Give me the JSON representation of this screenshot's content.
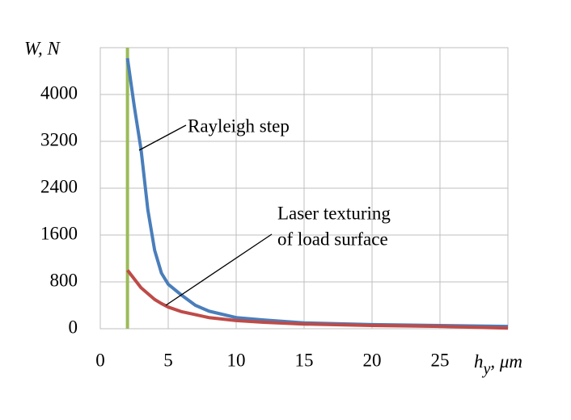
{
  "chart_data": {
    "type": "line",
    "y_label": "W, N",
    "x_label": {
      "symbol": "h",
      "subscript": "y",
      "unit": ", μm"
    },
    "x": [
      2,
      2.5,
      3,
      3.5,
      4,
      4.5,
      5,
      6,
      7,
      8,
      10,
      12,
      15,
      20,
      25,
      30
    ],
    "series": [
      {
        "name": "Rayleigh step",
        "color": "#4a7ebb",
        "values": [
          4620,
          3800,
          3060,
          2030,
          1340,
          950,
          760,
          570,
          400,
          300,
          190,
          150,
          100,
          70,
          55,
          40
        ]
      },
      {
        "name": "Laser texturing of load surface",
        "color": "#be4b48",
        "values": [
          1000,
          850,
          700,
          600,
          500,
          430,
          370,
          290,
          240,
          190,
          140,
          110,
          80,
          55,
          40,
          10
        ]
      }
    ],
    "vertical_line": {
      "x": 2,
      "color": "#9bbb59"
    },
    "annotations": [
      {
        "text": "Rayleigh step"
      },
      {
        "text": "Laser texturing"
      },
      {
        "text": "of load surface"
      }
    ],
    "xlim": [
      0,
      30
    ],
    "xticks": [
      0,
      5,
      10,
      15,
      20,
      25
    ],
    "ylim": [
      0,
      4800
    ],
    "yticks": [
      0,
      800,
      1600,
      2400,
      3200,
      4000
    ],
    "grid": true
  }
}
